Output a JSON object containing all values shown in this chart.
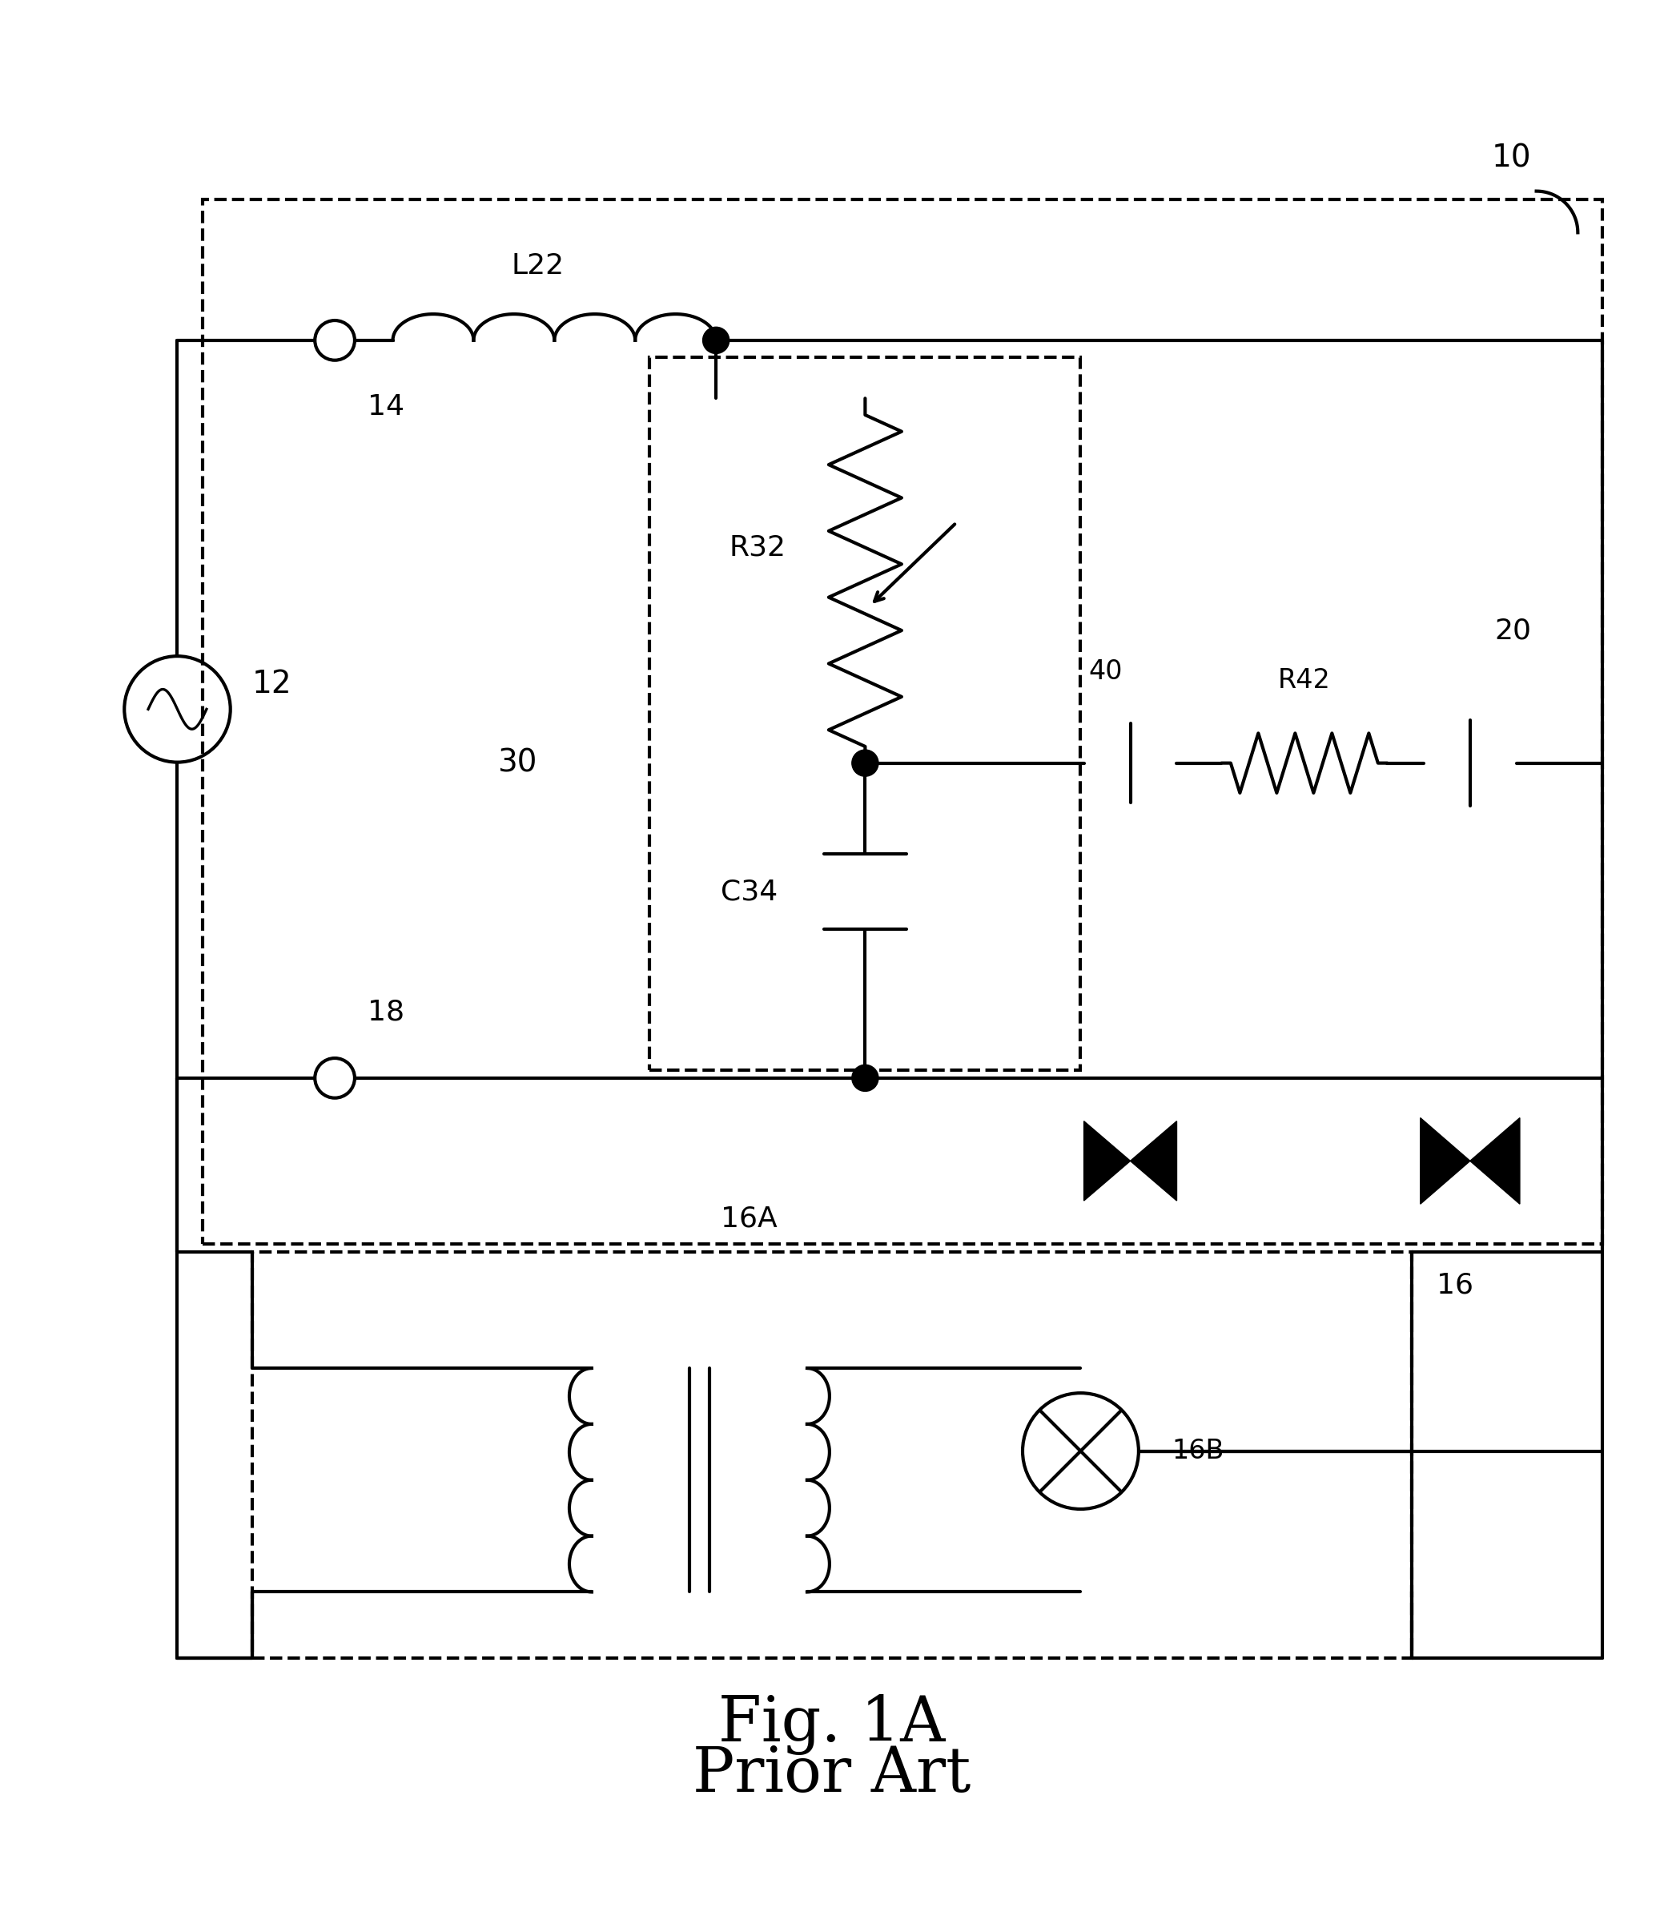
{
  "bg_color": "#ffffff",
  "line_color": "#000000",
  "lw": 3.0,
  "fig_width": 20.78,
  "fig_height": 24.02,
  "title": "Fig. 1A",
  "subtitle": "Prior Art",
  "label_10": "10",
  "label_12": "12",
  "label_14": "14",
  "label_16": "16",
  "label_16A": "16A",
  "label_16B": "16B",
  "label_18": "18",
  "label_20": "20",
  "label_30": "30",
  "label_40": "40",
  "label_R32": "R32",
  "label_R42": "R42",
  "label_C34": "C34",
  "label_L22": "L22",
  "font_label": 26,
  "font_title": 56
}
